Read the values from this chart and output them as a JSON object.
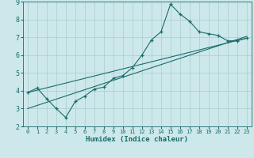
{
  "title": "",
  "xlabel": "Humidex (Indice chaleur)",
  "ylabel": "",
  "background_color": "#cce8ea",
  "grid_color": "#aacccc",
  "line_color": "#1a6b6b",
  "xlim": [
    -0.5,
    23.5
  ],
  "ylim": [
    2,
    9
  ],
  "xticks": [
    0,
    1,
    2,
    3,
    4,
    5,
    6,
    7,
    8,
    9,
    10,
    11,
    12,
    13,
    14,
    15,
    16,
    17,
    18,
    19,
    20,
    21,
    22,
    23
  ],
  "yticks": [
    2,
    3,
    4,
    5,
    6,
    7,
    8,
    9
  ],
  "series1_x": [
    0,
    1,
    2,
    3,
    4,
    5,
    6,
    7,
    8,
    9,
    10,
    11,
    12,
    13,
    14,
    15,
    16,
    17,
    18,
    19,
    20,
    21,
    22,
    23
  ],
  "series1_y": [
    3.9,
    4.15,
    3.55,
    3.0,
    2.5,
    3.4,
    3.7,
    4.1,
    4.2,
    4.7,
    4.85,
    5.3,
    6.0,
    6.85,
    7.3,
    8.85,
    8.3,
    7.9,
    7.3,
    7.2,
    7.1,
    6.8,
    6.8,
    6.95
  ],
  "line2_x0": 0,
  "line2_x1": 23,
  "line2_y0": 3.9,
  "line2_y1": 6.95,
  "line3_x0": 0,
  "line3_x1": 23,
  "line3_y0": 3.0,
  "line3_y1": 7.05
}
